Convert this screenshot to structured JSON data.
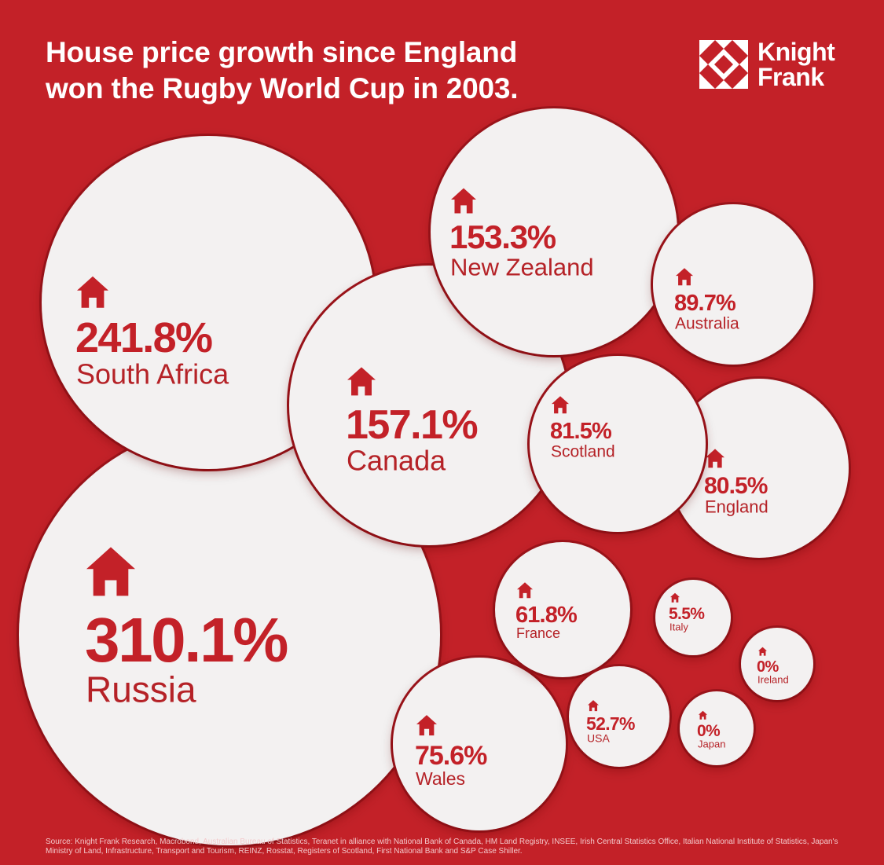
{
  "title": {
    "line1": "House price growth since England",
    "line2": "won the Rugby World Cup in 2003."
  },
  "logo": {
    "line1": "Knight",
    "line2": "Frank"
  },
  "colors": {
    "background": "#c32128",
    "bubble": "#f3f1f1",
    "accent": "#c32128",
    "text_light": "#ffffff"
  },
  "chart_data": {
    "type": "bubble",
    "title": "House price growth since England won the Rugby World Cup in 2003.",
    "metric": "house price growth (%)",
    "series": [
      {
        "country": "Russia",
        "value": 310.1,
        "label": "310.1%"
      },
      {
        "country": "South Africa",
        "value": 241.8,
        "label": "241.8%"
      },
      {
        "country": "Canada",
        "value": 157.1,
        "label": "157.1%"
      },
      {
        "country": "New Zealand",
        "value": 153.3,
        "label": "153.3%"
      },
      {
        "country": "Australia",
        "value": 89.7,
        "label": "89.7%"
      },
      {
        "country": "Scotland",
        "value": 81.5,
        "label": "81.5%"
      },
      {
        "country": "England",
        "value": 80.5,
        "label": "80.5%"
      },
      {
        "country": "Wales",
        "value": 75.6,
        "label": "75.6%"
      },
      {
        "country": "France",
        "value": 61.8,
        "label": "61.8%"
      },
      {
        "country": "USA",
        "value": 52.7,
        "label": "52.7%"
      },
      {
        "country": "Italy",
        "value": 5.5,
        "label": "5.5%"
      },
      {
        "country": "Ireland",
        "value": 0,
        "label": "0%"
      },
      {
        "country": "Japan",
        "value": 0,
        "label": "0%"
      }
    ]
  },
  "source": "Source: Knight Frank Research, Macrobond, Australian Bureau of Statistics, Teranet in alliance with National Bank of Canada, HM Land Registry, INSEE, Irish Central Statistics Office, Italian National Institute of Statistics, Japan's Ministry of Land, Infrastructure, Transport and Tourism, REINZ, Rosstat, Registers of Scotland, First National Bank and S&P Case Shiller."
}
